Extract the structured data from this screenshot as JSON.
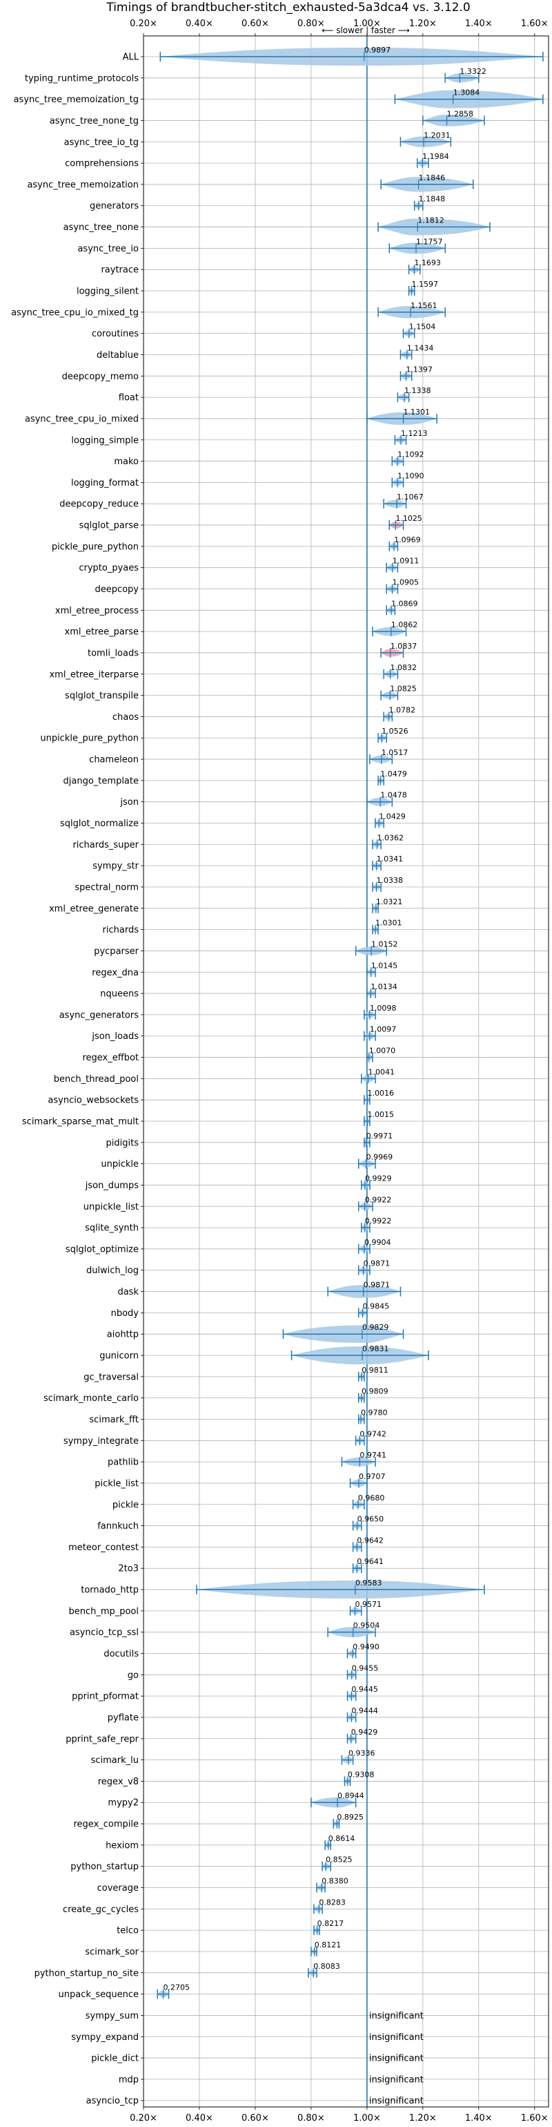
{
  "chart_data": {
    "type": "violin",
    "title": "Timings of brandtbucher-stitch_exhausted-5a3dca4 vs. 3.12.0",
    "direction_label": "⟵ slower | faster ⟶",
    "xlim": [
      0.2,
      1.65
    ],
    "x_ticks": [
      0.2,
      0.4,
      0.6,
      0.8,
      1.0,
      1.2,
      1.4,
      1.6
    ],
    "x_tick_labels": [
      "0.20×",
      "0.40×",
      "0.60×",
      "0.80×",
      "1.00×",
      "1.20×",
      "1.40×",
      "1.60×"
    ],
    "reference_x": 1.0,
    "grid": true,
    "colors": {
      "violin": "#a6c8e5",
      "line": "#1f77b4",
      "highlight": "#e8a0b4"
    },
    "benchmarks": [
      {
        "name": "ALL",
        "value": 0.9897,
        "label": "0.9897",
        "min": 0.26,
        "max": 1.63
      },
      {
        "name": "typing_runtime_protocols",
        "value": 1.3322,
        "label": "1.3322",
        "min": 1.28,
        "max": 1.4
      },
      {
        "name": "async_tree_memoization_tg",
        "value": 1.3084,
        "label": "1.3084",
        "min": 1.1,
        "max": 1.63
      },
      {
        "name": "async_tree_none_tg",
        "value": 1.2858,
        "label": "1.2858",
        "min": 1.2,
        "max": 1.42
      },
      {
        "name": "async_tree_io_tg",
        "value": 1.2031,
        "label": "1.2031",
        "min": 1.12,
        "max": 1.3
      },
      {
        "name": "comprehensions",
        "value": 1.1984,
        "label": "1.1984",
        "min": 1.18,
        "max": 1.22
      },
      {
        "name": "async_tree_memoization",
        "value": 1.1846,
        "label": "1.1846",
        "min": 1.05,
        "max": 1.38
      },
      {
        "name": "generators",
        "value": 1.1848,
        "label": "1.1848",
        "min": 1.17,
        "max": 1.2
      },
      {
        "name": "async_tree_none",
        "value": 1.1812,
        "label": "1.1812",
        "min": 1.04,
        "max": 1.44
      },
      {
        "name": "async_tree_io",
        "value": 1.1757,
        "label": "1.1757",
        "min": 1.08,
        "max": 1.28
      },
      {
        "name": "raytrace",
        "value": 1.1693,
        "label": "1.1693",
        "min": 1.15,
        "max": 1.19
      },
      {
        "name": "logging_silent",
        "value": 1.1597,
        "label": "1.1597",
        "min": 1.15,
        "max": 1.17
      },
      {
        "name": "async_tree_cpu_io_mixed_tg",
        "value": 1.1561,
        "label": "1.1561",
        "min": 1.04,
        "max": 1.28
      },
      {
        "name": "coroutines",
        "value": 1.1504,
        "label": "1.1504",
        "min": 1.13,
        "max": 1.17
      },
      {
        "name": "deltablue",
        "value": 1.1434,
        "label": "1.1434",
        "min": 1.12,
        "max": 1.16
      },
      {
        "name": "deepcopy_memo",
        "value": 1.1397,
        "label": "1.1397",
        "min": 1.12,
        "max": 1.16
      },
      {
        "name": "float",
        "value": 1.1338,
        "label": "1.1338",
        "min": 1.11,
        "max": 1.15
      },
      {
        "name": "async_tree_cpu_io_mixed",
        "value": 1.1301,
        "label": "1.1301",
        "min": 1.0,
        "max": 1.25
      },
      {
        "name": "logging_simple",
        "value": 1.1213,
        "label": "1.1213",
        "min": 1.1,
        "max": 1.14
      },
      {
        "name": "mako",
        "value": 1.1092,
        "label": "1.1092",
        "min": 1.09,
        "max": 1.13
      },
      {
        "name": "logging_format",
        "value": 1.109,
        "label": "1.1090",
        "min": 1.09,
        "max": 1.13
      },
      {
        "name": "deepcopy_reduce",
        "value": 1.1067,
        "label": "1.1067",
        "min": 1.06,
        "max": 1.14
      },
      {
        "name": "sqlglot_parse",
        "value": 1.1025,
        "label": "1.1025",
        "min": 1.08,
        "max": 1.13,
        "highlight": true
      },
      {
        "name": "pickle_pure_python",
        "value": 1.0969,
        "label": "1.0969",
        "min": 1.08,
        "max": 1.11
      },
      {
        "name": "crypto_pyaes",
        "value": 1.0911,
        "label": "1.0911",
        "min": 1.07,
        "max": 1.11
      },
      {
        "name": "deepcopy",
        "value": 1.0905,
        "label": "1.0905",
        "min": 1.07,
        "max": 1.11
      },
      {
        "name": "xml_etree_process",
        "value": 1.0869,
        "label": "1.0869",
        "min": 1.07,
        "max": 1.1
      },
      {
        "name": "xml_etree_parse",
        "value": 1.0862,
        "label": "1.0862",
        "min": 1.02,
        "max": 1.14
      },
      {
        "name": "tomli_loads",
        "value": 1.0837,
        "label": "1.0837",
        "min": 1.05,
        "max": 1.13,
        "highlight": true
      },
      {
        "name": "xml_etree_iterparse",
        "value": 1.0832,
        "label": "1.0832",
        "min": 1.06,
        "max": 1.11
      },
      {
        "name": "sqlglot_transpile",
        "value": 1.0825,
        "label": "1.0825",
        "min": 1.05,
        "max": 1.11
      },
      {
        "name": "chaos",
        "value": 1.0782,
        "label": "1.0782",
        "min": 1.06,
        "max": 1.09
      },
      {
        "name": "unpickle_pure_python",
        "value": 1.0526,
        "label": "1.0526",
        "min": 1.04,
        "max": 1.07
      },
      {
        "name": "chameleon",
        "value": 1.0517,
        "label": "1.0517",
        "min": 1.01,
        "max": 1.09
      },
      {
        "name": "django_template",
        "value": 1.0479,
        "label": "1.0479",
        "min": 1.04,
        "max": 1.06
      },
      {
        "name": "json",
        "value": 1.0478,
        "label": "1.0478",
        "min": 1.0,
        "max": 1.09
      },
      {
        "name": "sqlglot_normalize",
        "value": 1.0429,
        "label": "1.0429",
        "min": 1.03,
        "max": 1.06
      },
      {
        "name": "richards_super",
        "value": 1.0362,
        "label": "1.0362",
        "min": 1.02,
        "max": 1.05
      },
      {
        "name": "sympy_str",
        "value": 1.0341,
        "label": "1.0341",
        "min": 1.02,
        "max": 1.05
      },
      {
        "name": "spectral_norm",
        "value": 1.0338,
        "label": "1.0338",
        "min": 1.02,
        "max": 1.05
      },
      {
        "name": "xml_etree_generate",
        "value": 1.0321,
        "label": "1.0321",
        "min": 1.02,
        "max": 1.04
      },
      {
        "name": "richards",
        "value": 1.0301,
        "label": "1.0301",
        "min": 1.02,
        "max": 1.04
      },
      {
        "name": "pycparser",
        "value": 1.0152,
        "label": "1.0152",
        "min": 0.96,
        "max": 1.07
      },
      {
        "name": "regex_dna",
        "value": 1.0145,
        "label": "1.0145",
        "min": 1.0,
        "max": 1.03
      },
      {
        "name": "nqueens",
        "value": 1.0134,
        "label": "1.0134",
        "min": 1.0,
        "max": 1.03
      },
      {
        "name": "async_generators",
        "value": 1.0098,
        "label": "1.0098",
        "min": 0.99,
        "max": 1.03
      },
      {
        "name": "json_loads",
        "value": 1.0097,
        "label": "1.0097",
        "min": 0.99,
        "max": 1.03
      },
      {
        "name": "regex_effbot",
        "value": 1.007,
        "label": "1.0070",
        "min": 1.0,
        "max": 1.02
      },
      {
        "name": "bench_thread_pool",
        "value": 1.0041,
        "label": "1.0041",
        "min": 0.98,
        "max": 1.03
      },
      {
        "name": "asyncio_websockets",
        "value": 1.0016,
        "label": "1.0016",
        "min": 0.99,
        "max": 1.01
      },
      {
        "name": "scimark_sparse_mat_mult",
        "value": 1.0015,
        "label": "1.0015",
        "min": 0.99,
        "max": 1.01
      },
      {
        "name": "pidigits",
        "value": 0.9971,
        "label": "0.9971",
        "min": 0.99,
        "max": 1.01
      },
      {
        "name": "unpickle",
        "value": 0.9969,
        "label": "0.9969",
        "min": 0.97,
        "max": 1.03
      },
      {
        "name": "json_dumps",
        "value": 0.9929,
        "label": "0.9929",
        "min": 0.98,
        "max": 1.01
      },
      {
        "name": "unpickle_list",
        "value": 0.9922,
        "label": "0.9922",
        "min": 0.97,
        "max": 1.02
      },
      {
        "name": "sqlite_synth",
        "value": 0.9922,
        "label": "0.9922",
        "min": 0.98,
        "max": 1.01
      },
      {
        "name": "sqlglot_optimize",
        "value": 0.9904,
        "label": "0.9904",
        "min": 0.97,
        "max": 1.01
      },
      {
        "name": "dulwich_log",
        "value": 0.9871,
        "label": "0.9871",
        "min": 0.97,
        "max": 1.01
      },
      {
        "name": "dask",
        "value": 0.9871,
        "label": "0.9871",
        "min": 0.86,
        "max": 1.12
      },
      {
        "name": "nbody",
        "value": 0.9845,
        "label": "0.9845",
        "min": 0.97,
        "max": 1.0
      },
      {
        "name": "aiohttp",
        "value": 0.9829,
        "label": "0.9829",
        "min": 0.7,
        "max": 1.13
      },
      {
        "name": "gunicorn",
        "value": 0.9831,
        "label": "0.9831",
        "min": 0.73,
        "max": 1.22
      },
      {
        "name": "gc_traversal",
        "value": 0.9811,
        "label": "0.9811",
        "min": 0.97,
        "max": 0.99
      },
      {
        "name": "scimark_monte_carlo",
        "value": 0.9809,
        "label": "0.9809",
        "min": 0.97,
        "max": 0.99
      },
      {
        "name": "scimark_fft",
        "value": 0.978,
        "label": "0.9780",
        "min": 0.97,
        "max": 0.99
      },
      {
        "name": "sympy_integrate",
        "value": 0.9742,
        "label": "0.9742",
        "min": 0.96,
        "max": 0.99
      },
      {
        "name": "pathlib",
        "value": 0.9741,
        "label": "0.9741",
        "min": 0.91,
        "max": 1.03
      },
      {
        "name": "pickle_list",
        "value": 0.9707,
        "label": "0.9707",
        "min": 0.94,
        "max": 1.0
      },
      {
        "name": "pickle",
        "value": 0.968,
        "label": "0.9680",
        "min": 0.95,
        "max": 0.99
      },
      {
        "name": "fannkuch",
        "value": 0.965,
        "label": "0.9650",
        "min": 0.95,
        "max": 0.98
      },
      {
        "name": "meteor_contest",
        "value": 0.9642,
        "label": "0.9642",
        "min": 0.95,
        "max": 0.98
      },
      {
        "name": "2to3",
        "value": 0.9641,
        "label": "0.9641",
        "min": 0.95,
        "max": 0.98
      },
      {
        "name": "tornado_http",
        "value": 0.9583,
        "label": "0.9583",
        "min": 0.39,
        "max": 1.42
      },
      {
        "name": "bench_mp_pool",
        "value": 0.9571,
        "label": "0.9571",
        "min": 0.94,
        "max": 0.98
      },
      {
        "name": "asyncio_tcp_ssl",
        "value": 0.9504,
        "label": "0.9504",
        "min": 0.86,
        "max": 1.03
      },
      {
        "name": "docutils",
        "value": 0.949,
        "label": "0.9490",
        "min": 0.93,
        "max": 0.96
      },
      {
        "name": "go",
        "value": 0.9455,
        "label": "0.9455",
        "min": 0.93,
        "max": 0.96
      },
      {
        "name": "pprint_pformat",
        "value": 0.9445,
        "label": "0.9445",
        "min": 0.93,
        "max": 0.96
      },
      {
        "name": "pyflate",
        "value": 0.9444,
        "label": "0.9444",
        "min": 0.93,
        "max": 0.96
      },
      {
        "name": "pprint_safe_repr",
        "value": 0.9429,
        "label": "0.9429",
        "min": 0.93,
        "max": 0.96
      },
      {
        "name": "scimark_lu",
        "value": 0.9336,
        "label": "0.9336",
        "min": 0.91,
        "max": 0.95
      },
      {
        "name": "regex_v8",
        "value": 0.9308,
        "label": "0.9308",
        "min": 0.92,
        "max": 0.94
      },
      {
        "name": "mypy2",
        "value": 0.8944,
        "label": "0.8944",
        "min": 0.8,
        "max": 0.96
      },
      {
        "name": "regex_compile",
        "value": 0.8925,
        "label": "0.8925",
        "min": 0.88,
        "max": 0.9
      },
      {
        "name": "hexiom",
        "value": 0.8614,
        "label": "0.8614",
        "min": 0.85,
        "max": 0.87
      },
      {
        "name": "python_startup",
        "value": 0.8525,
        "label": "0.8525",
        "min": 0.84,
        "max": 0.87
      },
      {
        "name": "coverage",
        "value": 0.838,
        "label": "0.8380",
        "min": 0.82,
        "max": 0.85
      },
      {
        "name": "create_gc_cycles",
        "value": 0.8283,
        "label": "0.8283",
        "min": 0.81,
        "max": 0.84
      },
      {
        "name": "telco",
        "value": 0.8217,
        "label": "0.8217",
        "min": 0.81,
        "max": 0.83
      },
      {
        "name": "scimark_sor",
        "value": 0.8121,
        "label": "0.8121",
        "min": 0.8,
        "max": 0.82
      },
      {
        "name": "python_startup_no_site",
        "value": 0.8083,
        "label": "0.8083",
        "min": 0.79,
        "max": 0.82
      },
      {
        "name": "unpack_sequence",
        "value": 0.2705,
        "label": "0.2705",
        "min": 0.25,
        "max": 0.29
      },
      {
        "name": "sympy_sum",
        "label": "insignificant",
        "insignificant": true
      },
      {
        "name": "sympy_expand",
        "label": "insignificant",
        "insignificant": true
      },
      {
        "name": "pickle_dict",
        "label": "insignificant",
        "insignificant": true
      },
      {
        "name": "mdp",
        "label": "insignificant",
        "insignificant": true
      },
      {
        "name": "asyncio_tcp",
        "label": "insignificant",
        "insignificant": true
      }
    ]
  }
}
